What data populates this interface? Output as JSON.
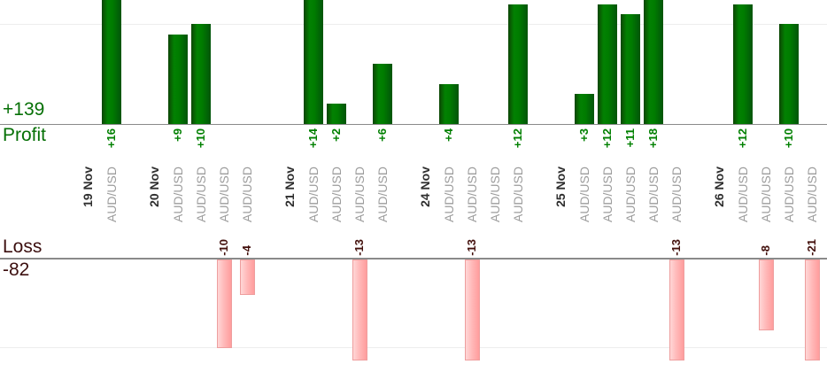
{
  "chart": {
    "profit_total_label": "+139",
    "profit_axis_label": "Profit",
    "loss_axis_label": "Loss",
    "loss_total_label": "-82",
    "colors": {
      "profit_green": "#008000",
      "profit_text": "#067006",
      "loss_text": "#3c0f0f",
      "loss_value_text": "#43100c",
      "loss_pink": "#ffb7b7",
      "loss_pink_border": "#ee9e9e",
      "date_text": "#2e2e2e",
      "symbol_text": "#9c9c9c",
      "axis_line": "#8a8a8a",
      "grid_line": "#ededed"
    }
  },
  "chart_data": {
    "type": "bar",
    "title": "",
    "orientation": "vertical-grouped-by-day",
    "profit_total": 139,
    "loss_total": -82,
    "gridline_values": {
      "profit": 10,
      "loss": -10
    },
    "legend": "none",
    "groups": [
      {
        "date": "19 Nov",
        "trades": [
          {
            "symbol": "AUD/USD",
            "value": 16,
            "label": "+16"
          }
        ]
      },
      {
        "date": "20 Nov",
        "trades": [
          {
            "symbol": "AUD/USD",
            "value": 9,
            "label": "+9"
          },
          {
            "symbol": "AUD/USD",
            "value": 10,
            "label": "+10"
          },
          {
            "symbol": "AUD/USD",
            "value": -10,
            "label": "-10"
          },
          {
            "symbol": "AUD/USD",
            "value": -4,
            "label": "-4"
          }
        ]
      },
      {
        "date": "21 Nov",
        "trades": [
          {
            "symbol": "AUD/USD",
            "value": 14,
            "label": "+14"
          },
          {
            "symbol": "AUD/USD",
            "value": 2,
            "label": "+2"
          },
          {
            "symbol": "AUD/USD",
            "value": -13,
            "label": "-13"
          },
          {
            "symbol": "AUD/USD",
            "value": 6,
            "label": "+6"
          }
        ]
      },
      {
        "date": "24 Nov",
        "trades": [
          {
            "symbol": "AUD/USD",
            "value": 4,
            "label": "+4"
          },
          {
            "symbol": "AUD/USD",
            "value": -13,
            "label": "-13"
          },
          {
            "symbol": "AUD/USD",
            "value": 0,
            "label": ""
          },
          {
            "symbol": "AUD/USD",
            "value": 12,
            "label": "+12"
          }
        ]
      },
      {
        "date": "25 Nov",
        "trades": [
          {
            "symbol": "AUD/USD",
            "value": 3,
            "label": "+3"
          },
          {
            "symbol": "AUD/USD",
            "value": 12,
            "label": "+12"
          },
          {
            "symbol": "AUD/USD",
            "value": 11,
            "label": "+11"
          },
          {
            "symbol": "AUD/USD",
            "value": 18,
            "label": "+18"
          },
          {
            "symbol": "AUD/USD",
            "value": -13,
            "label": "-13"
          }
        ]
      },
      {
        "date": "26 Nov",
        "trades": [
          {
            "symbol": "AUD/USD",
            "value": 12,
            "label": "+12"
          },
          {
            "symbol": "AUD/USD",
            "value": -8,
            "label": "-8"
          },
          {
            "symbol": "AUD/USD",
            "value": 10,
            "label": "+10"
          },
          {
            "symbol": "AUD/USD",
            "value": -21,
            "label": "-21"
          }
        ]
      }
    ]
  }
}
